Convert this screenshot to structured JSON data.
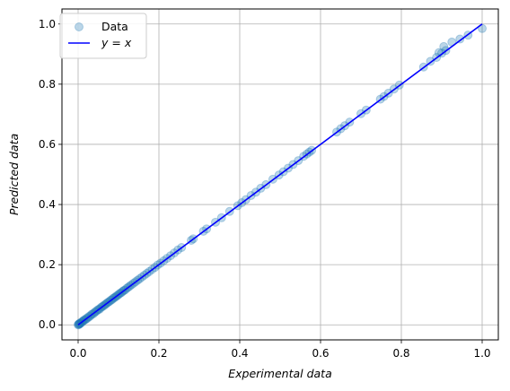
{
  "chart_data": {
    "type": "scatter",
    "xlabel": "Experimental data",
    "ylabel": "Predicted data",
    "xlim": [
      -0.04,
      1.04
    ],
    "ylim": [
      -0.05,
      1.05
    ],
    "xticks": [
      0.0,
      0.2,
      0.4,
      0.6,
      0.8,
      1.0
    ],
    "yticks": [
      0.0,
      0.2,
      0.4,
      0.6,
      0.8,
      1.0
    ],
    "xtick_labels": [
      "0.0",
      "0.2",
      "0.4",
      "0.6",
      "0.8",
      "1.0"
    ],
    "ytick_labels": [
      "0.0",
      "0.2",
      "0.4",
      "0.6",
      "0.8",
      "1.0"
    ],
    "grid": true,
    "legend_position": "top-left",
    "series": [
      {
        "name": "Data",
        "kind": "scatter",
        "color": "#1f77b4",
        "points": [
          [
            0.0,
            0.0
          ],
          [
            0.001,
            0.002
          ],
          [
            0.002,
            0.001
          ],
          [
            0.003,
            0.004
          ],
          [
            0.004,
            0.003
          ],
          [
            0.005,
            0.006
          ],
          [
            0.007,
            0.006
          ],
          [
            0.009,
            0.01
          ],
          [
            0.011,
            0.01
          ],
          [
            0.013,
            0.014
          ],
          [
            0.015,
            0.016
          ],
          [
            0.018,
            0.017
          ],
          [
            0.02,
            0.021
          ],
          [
            0.023,
            0.022
          ],
          [
            0.026,
            0.027
          ],
          [
            0.029,
            0.028
          ],
          [
            0.032,
            0.033
          ],
          [
            0.035,
            0.036
          ],
          [
            0.038,
            0.037
          ],
          [
            0.041,
            0.042
          ],
          [
            0.044,
            0.044
          ],
          [
            0.047,
            0.048
          ],
          [
            0.05,
            0.051
          ],
          [
            0.053,
            0.052
          ],
          [
            0.056,
            0.057
          ],
          [
            0.059,
            0.06
          ],
          [
            0.062,
            0.062
          ],
          [
            0.065,
            0.066
          ],
          [
            0.068,
            0.068
          ],
          [
            0.071,
            0.072
          ],
          [
            0.074,
            0.075
          ],
          [
            0.077,
            0.077
          ],
          [
            0.08,
            0.081
          ],
          [
            0.083,
            0.083
          ],
          [
            0.086,
            0.087
          ],
          [
            0.089,
            0.09
          ],
          [
            0.092,
            0.092
          ],
          [
            0.095,
            0.096
          ],
          [
            0.098,
            0.098
          ],
          [
            0.101,
            0.102
          ],
          [
            0.104,
            0.105
          ],
          [
            0.107,
            0.107
          ],
          [
            0.11,
            0.111
          ],
          [
            0.113,
            0.114
          ],
          [
            0.116,
            0.116
          ],
          [
            0.12,
            0.121
          ],
          [
            0.124,
            0.125
          ],
          [
            0.128,
            0.129
          ],
          [
            0.132,
            0.133
          ],
          [
            0.137,
            0.138
          ],
          [
            0.142,
            0.143
          ],
          [
            0.147,
            0.148
          ],
          [
            0.152,
            0.153
          ],
          [
            0.158,
            0.159
          ],
          [
            0.164,
            0.165
          ],
          [
            0.17,
            0.171
          ],
          [
            0.176,
            0.177
          ],
          [
            0.183,
            0.184
          ],
          [
            0.19,
            0.191
          ],
          [
            0.197,
            0.199
          ],
          [
            0.204,
            0.205
          ],
          [
            0.212,
            0.213
          ],
          [
            0.22,
            0.221
          ],
          [
            0.229,
            0.23
          ],
          [
            0.238,
            0.239
          ],
          [
            0.247,
            0.249
          ],
          [
            0.256,
            0.257
          ],
          [
            0.28,
            0.281
          ],
          [
            0.285,
            0.286
          ],
          [
            0.31,
            0.311
          ],
          [
            0.318,
            0.319
          ],
          [
            0.34,
            0.341
          ],
          [
            0.355,
            0.356
          ],
          [
            0.375,
            0.377
          ],
          [
            0.395,
            0.396
          ],
          [
            0.405,
            0.406
          ],
          [
            0.415,
            0.416
          ],
          [
            0.428,
            0.43
          ],
          [
            0.44,
            0.441
          ],
          [
            0.452,
            0.454
          ],
          [
            0.465,
            0.466
          ],
          [
            0.482,
            0.484
          ],
          [
            0.497,
            0.498
          ],
          [
            0.508,
            0.509
          ],
          [
            0.52,
            0.521
          ],
          [
            0.532,
            0.533
          ],
          [
            0.545,
            0.546
          ],
          [
            0.558,
            0.56
          ],
          [
            0.566,
            0.568
          ],
          [
            0.572,
            0.574
          ],
          [
            0.578,
            0.58
          ],
          [
            0.64,
            0.641
          ],
          [
            0.65,
            0.652
          ],
          [
            0.66,
            0.662
          ],
          [
            0.672,
            0.674
          ],
          [
            0.7,
            0.702
          ],
          [
            0.713,
            0.714
          ],
          [
            0.748,
            0.75
          ],
          [
            0.757,
            0.759
          ],
          [
            0.768,
            0.77
          ],
          [
            0.782,
            0.784
          ],
          [
            0.795,
            0.797
          ],
          [
            0.855,
            0.857
          ],
          [
            0.872,
            0.876
          ],
          [
            0.887,
            0.889
          ],
          [
            0.893,
            0.905
          ],
          [
            0.9,
            0.903
          ],
          [
            0.905,
            0.925
          ],
          [
            0.91,
            0.912
          ],
          [
            0.925,
            0.94
          ],
          [
            0.945,
            0.95
          ],
          [
            0.965,
            0.963
          ],
          [
            1.0,
            0.985
          ]
        ]
      },
      {
        "name": "y = x",
        "kind": "line",
        "color": "#0000ff",
        "x": [
          0.0,
          1.0
        ],
        "y": [
          0.0,
          1.0
        ]
      }
    ]
  }
}
